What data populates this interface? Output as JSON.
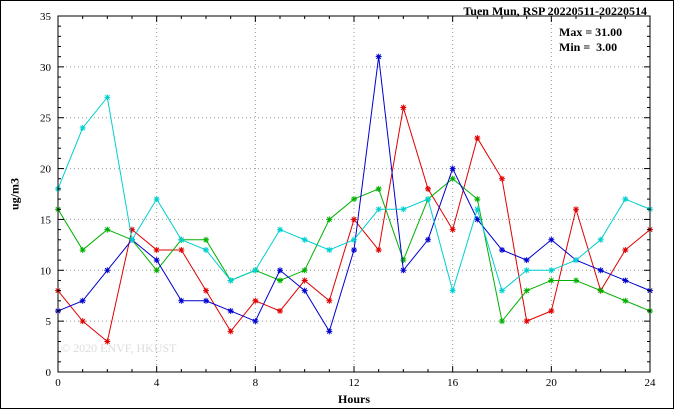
{
  "title": "Tuen Mun, RSP 20220511-20220514",
  "annotation": {
    "max_label": "Max = 31.00",
    "min_label": "Min =  3.00"
  },
  "watermark": "© 2020 ENVF, HKUST",
  "chart_data": {
    "type": "line",
    "title": "Tuen Mun, RSP 20220511-20220514",
    "xlabel": "Hours",
    "ylabel": "ug/m3",
    "xlim": [
      0,
      24
    ],
    "ylim": [
      0,
      35
    ],
    "x_ticks": [
      0,
      4,
      8,
      12,
      16,
      20,
      24
    ],
    "y_ticks": [
      0,
      5,
      10,
      15,
      20,
      25,
      30,
      35
    ],
    "minor_tick_step_x": 1,
    "minor_tick_step_y": 1,
    "grid": true,
    "legend": "none",
    "marker": "asterisk",
    "max": 31.0,
    "min": 3.0,
    "x": [
      0,
      1,
      2,
      3,
      4,
      5,
      6,
      7,
      8,
      9,
      10,
      11,
      12,
      13,
      14,
      15,
      16,
      17,
      18,
      19,
      20,
      21,
      22,
      23,
      24
    ],
    "series": [
      {
        "name": "series-red",
        "color": "#e00000",
        "values": [
          8,
          5,
          3,
          14,
          12,
          12,
          8,
          4,
          7,
          6,
          9,
          7,
          15,
          12,
          26,
          18,
          14,
          23,
          19,
          5,
          6,
          16,
          8,
          12,
          14
        ]
      },
      {
        "name": "series-green",
        "color": "#00b000",
        "values": [
          16,
          12,
          14,
          13,
          10,
          13,
          13,
          9,
          10,
          9,
          10,
          15,
          17,
          18,
          11,
          17,
          19,
          17,
          5,
          8,
          9,
          9,
          8,
          7,
          6
        ]
      },
      {
        "name": "series-blue",
        "color": "#0000d0",
        "values": [
          6,
          7,
          10,
          13,
          11,
          7,
          7,
          6,
          5,
          10,
          8,
          4,
          12,
          31,
          10,
          13,
          20,
          15,
          12,
          11,
          13,
          11,
          10,
          9,
          8
        ]
      },
      {
        "name": "series-cyan",
        "color": "#00d0d0",
        "values": [
          18,
          24,
          27,
          13,
          17,
          13,
          12,
          9,
          10,
          14,
          13,
          12,
          13,
          16,
          16,
          17,
          8,
          16,
          8,
          10,
          10,
          11,
          13,
          17,
          16
        ]
      }
    ]
  }
}
